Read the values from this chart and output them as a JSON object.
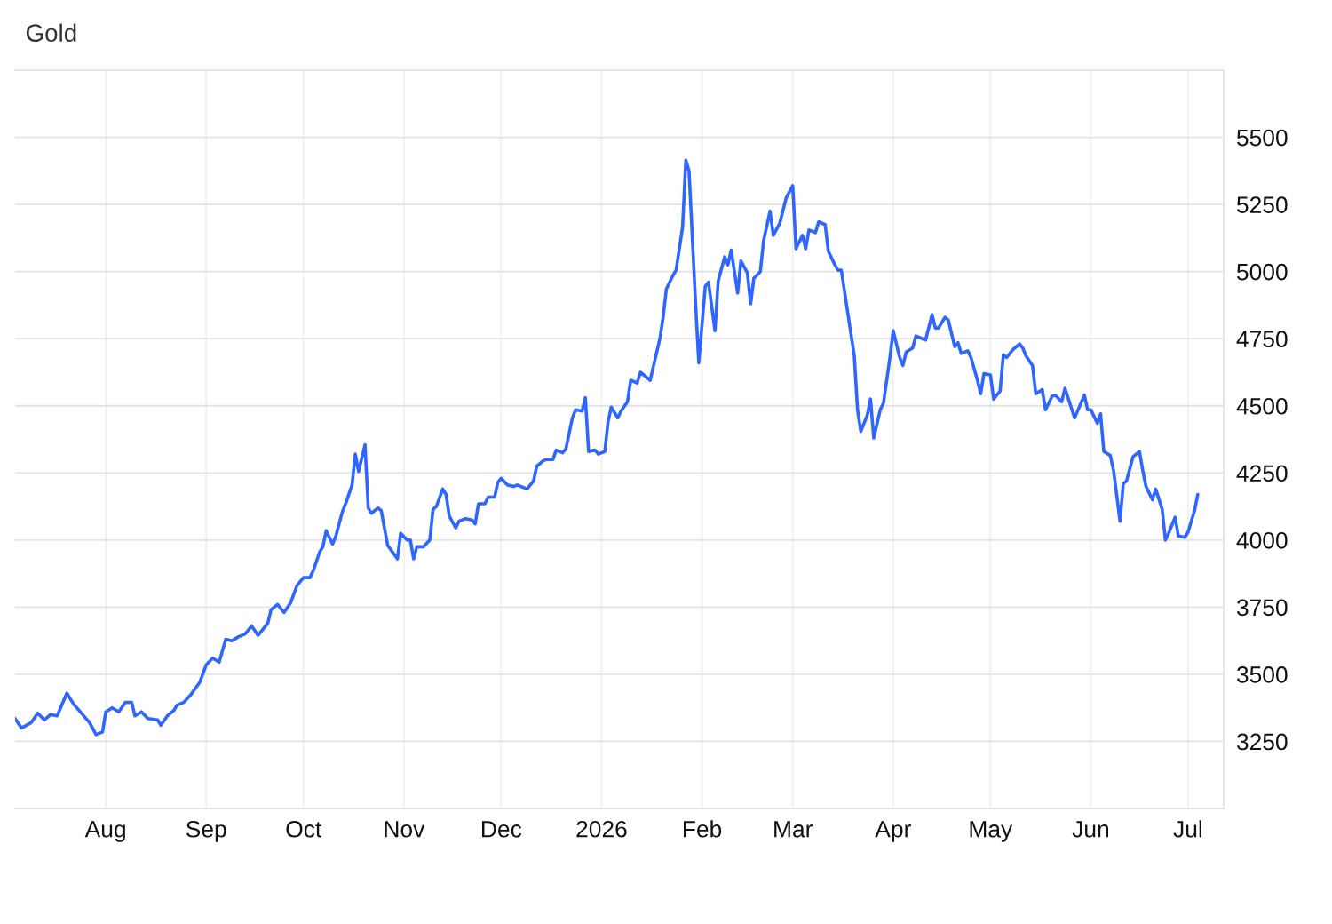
{
  "chart_data": {
    "type": "line",
    "title": "Gold",
    "x": [
      "2025-07-04",
      "2025-07-06",
      "2025-07-09",
      "2025-07-11",
      "2025-07-13",
      "2025-07-15",
      "2025-07-17",
      "2025-07-20",
      "2025-07-22",
      "2025-07-27",
      "2025-07-29",
      "2025-07-31",
      "2025-08-01",
      "2025-08-03",
      "2025-08-05",
      "2025-08-07",
      "2025-08-09",
      "2025-08-10",
      "2025-08-12",
      "2025-08-14",
      "2025-08-17",
      "2025-08-18",
      "2025-08-20",
      "2025-08-22",
      "2025-08-23",
      "2025-08-25",
      "2025-08-27",
      "2025-08-30",
      "2025-09-01",
      "2025-09-03",
      "2025-09-05",
      "2025-09-07",
      "2025-09-09",
      "2025-09-11",
      "2025-09-13",
      "2025-09-15",
      "2025-09-17",
      "2025-09-20",
      "2025-09-21",
      "2025-09-23",
      "2025-09-25",
      "2025-09-27",
      "2025-09-29",
      "2025-10-01",
      "2025-10-03",
      "2025-10-04",
      "2025-10-06",
      "2025-10-07",
      "2025-10-08",
      "2025-10-10",
      "2025-10-11",
      "2025-10-13",
      "2025-10-14",
      "2025-10-16",
      "2025-10-17",
      "2025-10-18",
      "2025-10-20",
      "2025-10-21",
      "2025-10-22",
      "2025-10-24",
      "2025-10-25",
      "2025-10-27",
      "2025-10-30",
      "2025-10-31",
      "2025-11-02",
      "2025-11-03",
      "2025-11-04",
      "2025-11-05",
      "2025-11-07",
      "2025-11-09",
      "2025-11-10",
      "2025-11-11",
      "2025-11-13",
      "2025-11-14",
      "2025-11-15",
      "2025-11-17",
      "2025-11-18",
      "2025-11-20",
      "2025-11-22",
      "2025-11-23",
      "2025-11-24",
      "2025-11-26",
      "2025-11-27",
      "2025-11-29",
      "2025-11-30",
      "2025-12-01",
      "2025-12-03",
      "2025-12-05",
      "2025-12-06",
      "2025-12-08",
      "2025-12-09",
      "2025-12-11",
      "2025-12-12",
      "2025-12-14",
      "2025-12-15",
      "2025-12-17",
      "2025-12-18",
      "2025-12-20",
      "2025-12-21",
      "2025-12-23",
      "2025-12-24",
      "2025-12-26",
      "2025-12-27",
      "2025-12-28",
      "2025-12-30",
      "2025-12-31",
      "2026-01-02",
      "2026-01-03",
      "2026-01-04",
      "2026-01-06",
      "2026-01-07",
      "2026-01-09",
      "2026-01-10",
      "2026-01-12",
      "2026-01-13",
      "2026-01-14",
      "2026-01-16",
      "2026-01-19",
      "2026-01-20",
      "2026-01-21",
      "2026-01-23",
      "2026-01-24",
      "2026-01-26",
      "2026-01-27",
      "2026-01-28",
      "2026-01-30",
      "2026-01-31",
      "2026-02-02",
      "2026-02-03",
      "2026-02-05",
      "2026-02-06",
      "2026-02-08",
      "2026-02-09",
      "2026-02-10",
      "2026-02-12",
      "2026-02-13",
      "2026-02-15",
      "2026-02-16",
      "2026-02-17",
      "2026-02-19",
      "2026-02-20",
      "2026-02-22",
      "2026-02-23",
      "2026-02-25",
      "2026-02-27",
      "2026-03-01",
      "2026-03-02",
      "2026-03-04",
      "2026-03-05",
      "2026-03-06",
      "2026-03-08",
      "2026-03-09",
      "2026-03-11",
      "2026-03-12",
      "2026-03-14",
      "2026-03-15",
      "2026-03-16",
      "2026-03-20",
      "2026-03-21",
      "2026-03-22",
      "2026-03-24",
      "2026-03-25",
      "2026-03-26",
      "2026-03-28",
      "2026-03-29",
      "2026-03-31",
      "2026-04-01",
      "2026-04-03",
      "2026-04-04",
      "2026-04-05",
      "2026-04-07",
      "2026-04-08",
      "2026-04-10",
      "2026-04-11",
      "2026-04-13",
      "2026-04-14",
      "2026-04-15",
      "2026-04-17",
      "2026-04-18",
      "2026-04-20",
      "2026-04-21",
      "2026-04-22",
      "2026-04-24",
      "2026-04-25",
      "2026-04-27",
      "2026-04-28",
      "2026-04-29",
      "2026-05-01",
      "2026-05-02",
      "2026-05-04",
      "2026-05-05",
      "2026-05-06",
      "2026-05-08",
      "2026-05-10",
      "2026-05-11",
      "2026-05-12",
      "2026-05-14",
      "2026-05-15",
      "2026-05-17",
      "2026-05-18",
      "2026-05-20",
      "2026-05-21",
      "2026-05-23",
      "2026-05-24",
      "2026-05-27",
      "2026-05-30",
      "2026-05-31",
      "2026-06-01",
      "2026-06-03",
      "2026-06-04",
      "2026-06-05",
      "2026-06-07",
      "2026-06-08",
      "2026-06-10",
      "2026-06-11",
      "2026-06-12",
      "2026-06-14",
      "2026-06-16",
      "2026-06-17",
      "2026-06-18",
      "2026-06-20",
      "2026-06-21",
      "2026-06-23",
      "2026-06-24",
      "2026-06-25",
      "2026-06-27",
      "2026-06-28",
      "2026-06-30",
      "2026-07-01",
      "2026-07-03",
      "2026-07-04"
    ],
    "series": [
      {
        "color": "#2f66ff",
        "values": [
          3335,
          3300,
          3320,
          3355,
          3330,
          3350,
          3345,
          3430,
          3390,
          3320,
          3275,
          3285,
          3360,
          3375,
          3360,
          3395,
          3395,
          3345,
          3360,
          3335,
          3330,
          3310,
          3345,
          3365,
          3385,
          3395,
          3420,
          3470,
          3535,
          3560,
          3545,
          3630,
          3625,
          3640,
          3650,
          3680,
          3645,
          3690,
          3740,
          3760,
          3730,
          3765,
          3830,
          3860,
          3860,
          3885,
          3955,
          3975,
          4035,
          3985,
          4015,
          4105,
          4135,
          4205,
          4320,
          4255,
          4355,
          4120,
          4100,
          4120,
          4110,
          3980,
          3930,
          4025,
          4000,
          4000,
          3930,
          3975,
          3975,
          4000,
          4115,
          4125,
          4190,
          4170,
          4090,
          4045,
          4070,
          4080,
          4075,
          4060,
          4135,
          4135,
          4160,
          4160,
          4215,
          4230,
          4205,
          4200,
          4205,
          4195,
          4190,
          4220,
          4275,
          4295,
          4300,
          4300,
          4335,
          4325,
          4340,
          4455,
          4485,
          4480,
          4530,
          4330,
          4335,
          4320,
          4330,
          4440,
          4495,
          4455,
          4480,
          4515,
          4595,
          4585,
          4625,
          4615,
          4595,
          4750,
          4830,
          4935,
          4985,
          5005,
          5165,
          5415,
          5375,
          4885,
          4660,
          4945,
          4960,
          4780,
          4965,
          5055,
          5025,
          5080,
          4920,
          5040,
          4995,
          4880,
          4975,
          5000,
          5115,
          5225,
          5135,
          5180,
          5275,
          5320,
          5085,
          5135,
          5085,
          5155,
          5145,
          5185,
          5175,
          5075,
          5025,
          5005,
          5005,
          4685,
          4485,
          4405,
          4465,
          4525,
          4380,
          4485,
          4510,
          4680,
          4780,
          4680,
          4650,
          4700,
          4715,
          4760,
          4750,
          4745,
          4840,
          4790,
          4790,
          4830,
          4820,
          4720,
          4735,
          4695,
          4705,
          4680,
          4595,
          4545,
          4620,
          4615,
          4525,
          4555,
          4690,
          4680,
          4710,
          4730,
          4715,
          4685,
          4650,
          4545,
          4560,
          4485,
          4535,
          4540,
          4515,
          4565,
          4455,
          4540,
          4485,
          4485,
          4435,
          4470,
          4330,
          4315,
          4260,
          4070,
          4210,
          4220,
          4310,
          4330,
          4260,
          4200,
          4150,
          4190,
          4115,
          4000,
          4025,
          4085,
          4015,
          4010,
          4030,
          4110,
          4170
        ]
      }
    ],
    "xlim": [
      "2025-07-04",
      "2026-07-12"
    ],
    "xticks": [
      {
        "value": "2025-08-01",
        "label": "Aug"
      },
      {
        "value": "2025-09-01",
        "label": "Sep"
      },
      {
        "value": "2025-10-01",
        "label": "Oct"
      },
      {
        "value": "2025-11-01",
        "label": "Nov"
      },
      {
        "value": "2025-12-01",
        "label": "Dec"
      },
      {
        "value": "2026-01-01",
        "label": "2026"
      },
      {
        "value": "2026-02-01",
        "label": "Feb"
      },
      {
        "value": "2026-03-01",
        "label": "Mar"
      },
      {
        "value": "2026-04-01",
        "label": "Apr"
      },
      {
        "value": "2026-05-01",
        "label": "May"
      },
      {
        "value": "2026-06-01",
        "label": "Jun"
      },
      {
        "value": "2026-07-01",
        "label": "Jul"
      }
    ],
    "ylim": [
      3000,
      5750
    ],
    "yticks": [
      3250,
      3500,
      3750,
      4000,
      4250,
      4500,
      4750,
      5000,
      5250,
      5500
    ],
    "grid": true,
    "marker": "none",
    "line_style": "solid"
  }
}
